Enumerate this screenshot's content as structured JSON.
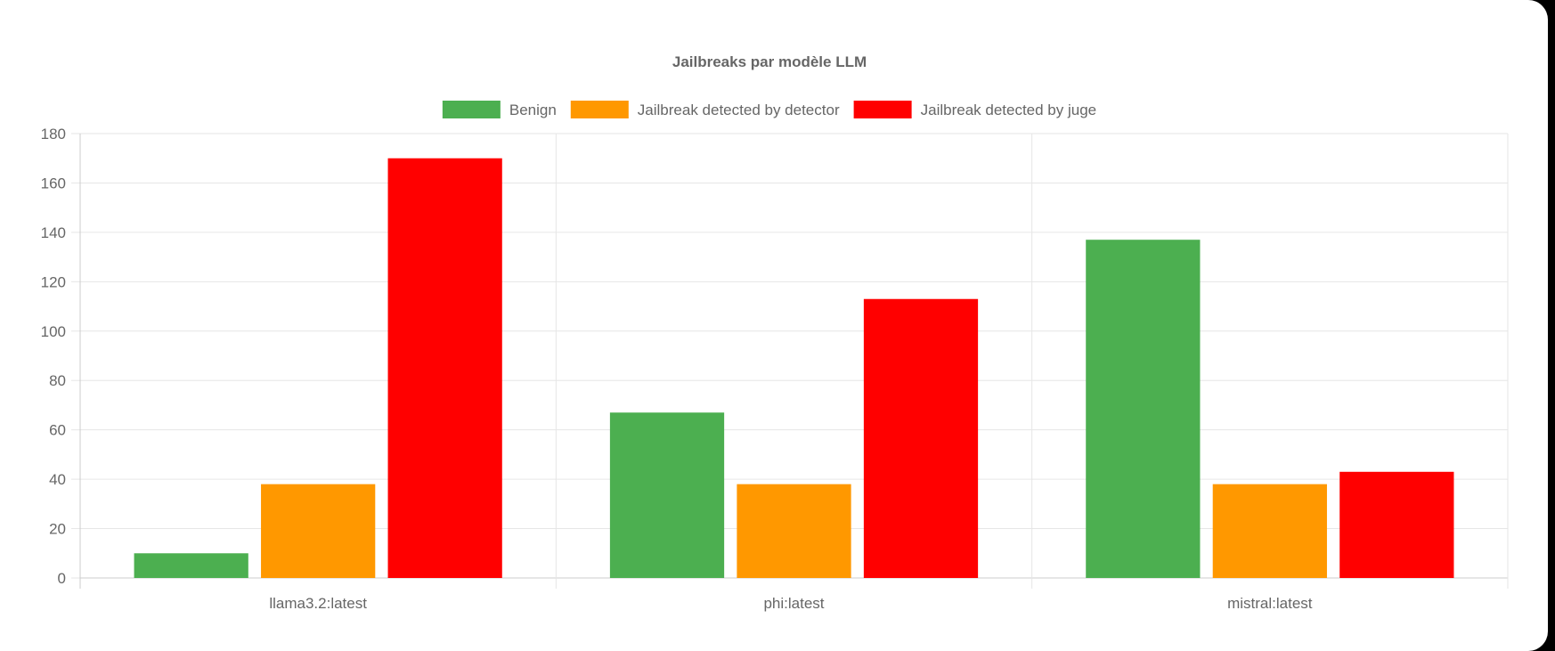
{
  "chart_data": {
    "type": "bar",
    "title": "Jailbreaks par modèle LLM",
    "categories": [
      "llama3.2:latest",
      "phi:latest",
      "mistral:latest"
    ],
    "series": [
      {
        "name": "Benign",
        "color": "#4caf50",
        "values": [
          10,
          67,
          137
        ]
      },
      {
        "name": "Jailbreak detected by detector",
        "color": "#ff9800",
        "values": [
          38,
          38,
          38
        ]
      },
      {
        "name": "Jailbreak detected by juge",
        "color": "#ff0000",
        "values": [
          170,
          113,
          43
        ]
      }
    ],
    "xlabel": "",
    "ylabel": "",
    "ylim": [
      0,
      180
    ],
    "yticks": [
      "0",
      "20",
      "40",
      "60",
      "80",
      "100",
      "120",
      "140",
      "160",
      "180"
    ],
    "grid": true,
    "legend_position": "top"
  }
}
